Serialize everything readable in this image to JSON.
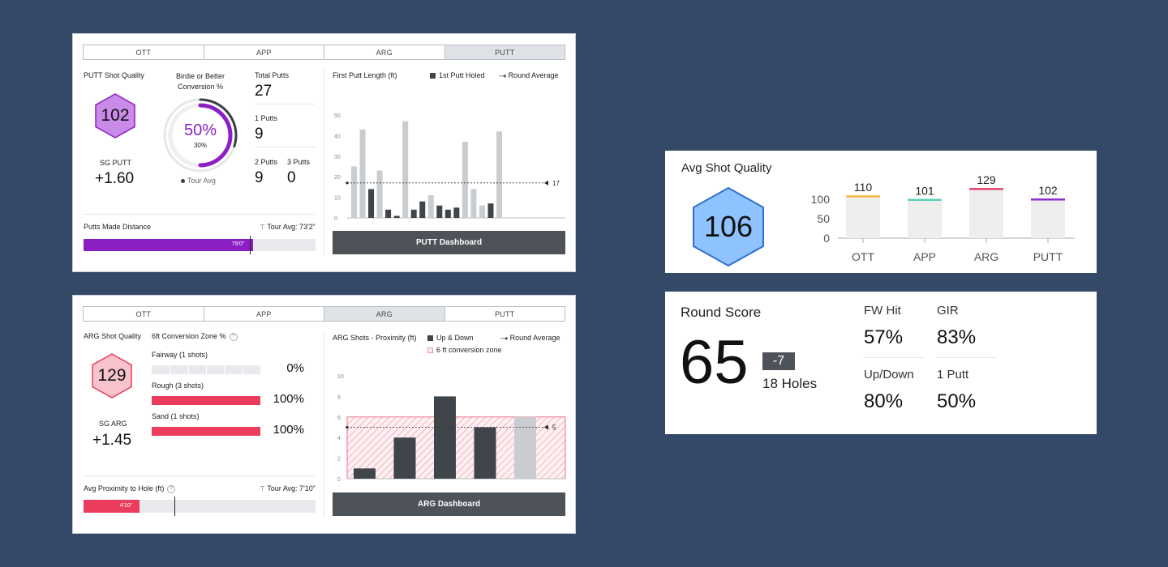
{
  "putt_card": {
    "tabs": [
      "OTT",
      "APP",
      "ARG",
      "PUTT"
    ],
    "active_tab": 3,
    "shot_quality_label": "PUTT Shot Quality",
    "shot_quality_value": "102",
    "sg_label": "SG PUTT",
    "sg_value": "+1.60",
    "birdie_label": "Birdie or Better Conversion %",
    "birdie_value": "50%",
    "birdie_tour": "30%",
    "birdie_fraction": 0.5,
    "tour_fraction": 0.3,
    "tour_avg_label": "Tour Avg",
    "total_putts_label": "Total Putts",
    "total_putts_value": "27",
    "one_putts_label": "1 Putts",
    "one_putts_value": "9",
    "two_putts_label": "2 Putts",
    "two_putts_value": "9",
    "three_putts_label": "3 Putts",
    "three_putts_value": "0",
    "made_distance_label": "Putts Made Distance",
    "made_distance_tour": "Tour Avg: 73'2\"",
    "made_distance_value": "79'0\"",
    "made_distance_fraction": 0.73,
    "chart_title": "First Putt Length (ft)",
    "legend_holed": "1st Putt Holed",
    "legend_avg": "Round Average",
    "button": "PUTT Dashboard",
    "colors": {
      "accent": "#8c1fc4",
      "hex_fill": "#c98ae8"
    }
  },
  "arg_card": {
    "tabs": [
      "OTT",
      "APP",
      "ARG",
      "PUTT"
    ],
    "active_tab": 2,
    "shot_quality_label": "ARG Shot Quality",
    "shot_quality_value": "129",
    "sg_label": "SG ARG",
    "sg_value": "+1.45",
    "zone_label": "6ft Conversion Zone %",
    "zones": [
      {
        "label": "Fairway (1 shots)",
        "value": "0%",
        "fraction": 0
      },
      {
        "label": "Rough (3 shots)",
        "value": "100%",
        "fraction": 1
      },
      {
        "label": "Sand (1 shots)",
        "value": "100%",
        "fraction": 1
      }
    ],
    "proximity_label": "Avg Proximity to Hole (ft)",
    "proximity_tour": "Tour Avg: 7'10\"",
    "proximity_value": "4'10\"",
    "proximity_fraction": 0.24,
    "proximity_tour_fraction": 0.39,
    "chart_title": "ARG Shots - Proximity (ft)",
    "legend_updown": "Up & Down",
    "legend_zone": "6 ft conversion zone",
    "legend_avg": "Round Average",
    "button": "ARG Dashboard",
    "colors": {
      "accent": "#ea3d5e",
      "hex_fill": "#f7c3cd"
    }
  },
  "avg_card": {
    "title": "Avg Shot Quality",
    "value": "106",
    "hex_fill": "#8ec3ff"
  },
  "round_card": {
    "title": "Round Score",
    "score": "65",
    "to_par": "-7",
    "holes": "18 Holes",
    "fw_label": "FW Hit",
    "fw_value": "57%",
    "gir_label": "GIR",
    "gir_value": "83%",
    "updown_label": "Up/Down",
    "updown_value": "80%",
    "oneputt_label": "1 Putt",
    "oneputt_value": "50%"
  },
  "chart_data": [
    {
      "type": "bar",
      "title": "First Putt Length (ft)",
      "ylim": [
        0,
        50
      ],
      "yticks": [
        0,
        10,
        20,
        30,
        40,
        50
      ],
      "round_average": 17,
      "legend": [
        "1st Putt Holed",
        "Round Average"
      ],
      "series": [
        {
          "name": "1st Putt Holed",
          "values": [
            0,
            0,
            14,
            0,
            4,
            1,
            0,
            4,
            8,
            0,
            6,
            4,
            5,
            0,
            0,
            0,
            7,
            0
          ]
        },
        {
          "name": "",
          "values": [
            25,
            43,
            0,
            23,
            0,
            0,
            47,
            0,
            0,
            11,
            0,
            0,
            0,
            37,
            14,
            6,
            0,
            42
          ]
        }
      ]
    },
    {
      "type": "bar",
      "title": "ARG Shots - Proximity (ft)",
      "ylim": [
        0,
        10
      ],
      "yticks": [
        0,
        2,
        4,
        6,
        8,
        10
      ],
      "round_average": 5,
      "conversion_zone": 6,
      "legend": [
        "Up & Down",
        "6 ft conversion zone",
        "Round Average"
      ],
      "values": [
        1,
        4,
        8,
        5,
        6
      ],
      "up_and_down": [
        true,
        true,
        true,
        true,
        false
      ]
    },
    {
      "type": "bar",
      "title": "Avg Shot Quality",
      "categories": [
        "OTT",
        "APP",
        "ARG",
        "PUTT"
      ],
      "values": [
        110,
        101,
        129,
        102
      ],
      "yticks": [
        0,
        50,
        100
      ],
      "colors": [
        "#f5b942",
        "#5fd0b7",
        "#e8446a",
        "#8b2fd1"
      ]
    }
  ]
}
